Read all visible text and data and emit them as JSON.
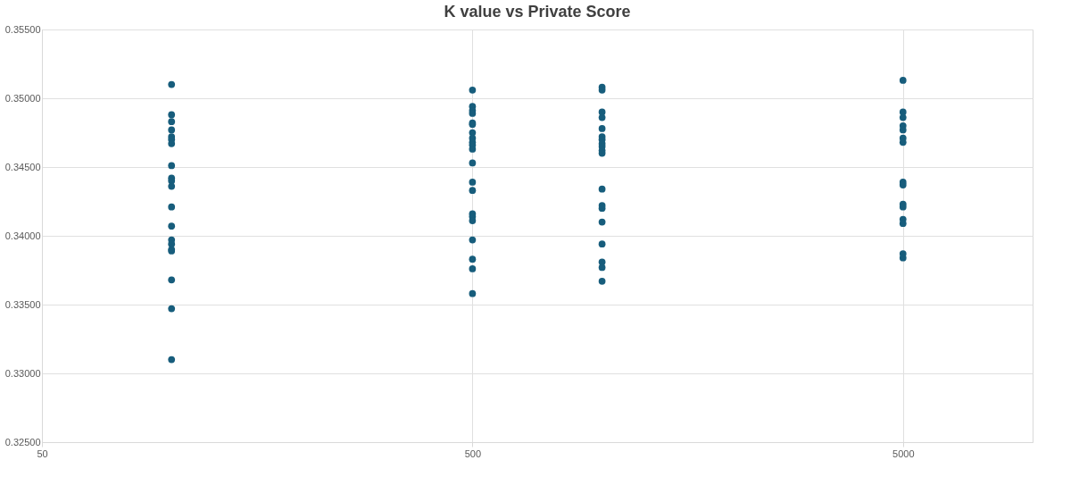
{
  "chart_data": {
    "type": "scatter",
    "title": "K value vs Private Score",
    "x": [
      100,
      100,
      100,
      100,
      100,
      100,
      100,
      100,
      100,
      100,
      100,
      100,
      100,
      100,
      100,
      100,
      100,
      100,
      100,
      100,
      500,
      500,
      500,
      500,
      500,
      500,
      500,
      500,
      500,
      500,
      500,
      500,
      500,
      500,
      500,
      500,
      500,
      500,
      500,
      500,
      500,
      1000,
      1000,
      1000,
      1000,
      1000,
      1000,
      1000,
      1000,
      1000,
      1000,
      1000,
      1000,
      1000,
      1000,
      1000,
      1000,
      1000,
      1000,
      1000,
      5000,
      5000,
      5000,
      5000,
      5000,
      5000,
      5000,
      5000,
      5000,
      5000,
      5000,
      5000,
      5000,
      5000,
      5000
    ],
    "series": [
      {
        "color": "#175d7c",
        "values": [
          0.351,
          0.3488,
          0.3483,
          0.3477,
          0.3472,
          0.347,
          0.3467,
          0.3451,
          0.3442,
          0.344,
          0.3436,
          0.3421,
          0.3407,
          0.3397,
          0.3394,
          0.339,
          0.3389,
          0.3368,
          0.3347,
          0.331,
          0.3506,
          0.3494,
          0.3491,
          0.3489,
          0.3482,
          0.3481,
          0.3475,
          0.3471,
          0.3468,
          0.3466,
          0.3463,
          0.3453,
          0.3439,
          0.3433,
          0.3416,
          0.3414,
          0.3411,
          0.3397,
          0.3383,
          0.3376,
          0.3358,
          0.3508,
          0.3506,
          0.349,
          0.3486,
          0.3478,
          0.3472,
          0.347,
          0.3467,
          0.3465,
          0.3462,
          0.346,
          0.3434,
          0.3422,
          0.342,
          0.341,
          0.3394,
          0.3381,
          0.3377,
          0.3367,
          0.3513,
          0.349,
          0.3486,
          0.348,
          0.3477,
          0.3471,
          0.3468,
          0.3439,
          0.3437,
          0.3423,
          0.3421,
          0.3412,
          0.3409,
          0.3387,
          0.3384
        ]
      }
    ],
    "xlim": [
      50,
      10000
    ],
    "xticks": [
      50,
      500,
      5000
    ],
    "log": "x",
    "ylim": [
      0.325,
      0.355
    ],
    "yticks": [
      {
        "value": 0.325,
        "label": "0.32500"
      },
      {
        "value": 0.33,
        "label": "0.33000"
      },
      {
        "value": 0.335,
        "label": "0.33500"
      },
      {
        "value": 0.34,
        "label": "0.34000"
      },
      {
        "value": 0.345,
        "label": "0.34500"
      },
      {
        "value": 0.35,
        "label": "0.35000"
      },
      {
        "value": 0.355,
        "label": "0.35500"
      }
    ],
    "grid": true,
    "marker": "circle",
    "legend": false
  }
}
